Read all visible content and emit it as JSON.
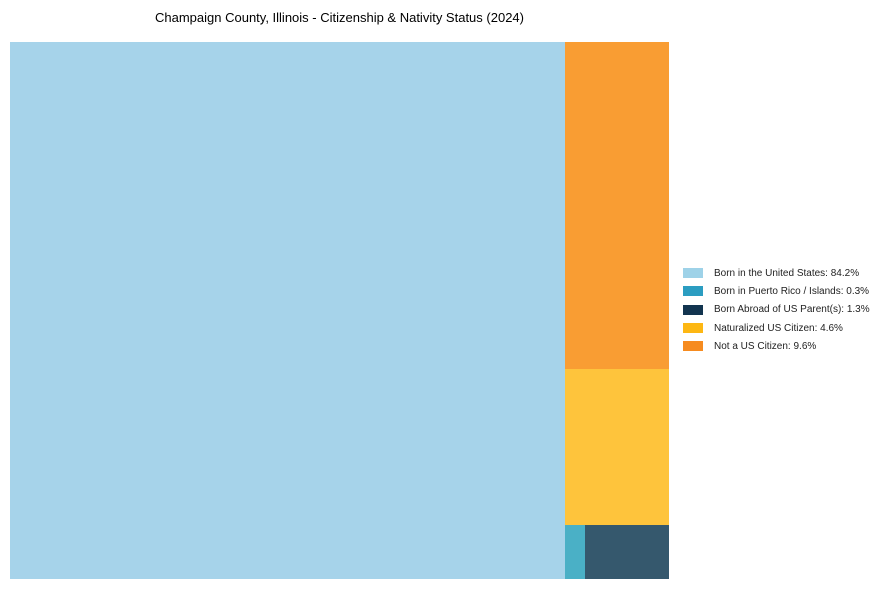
{
  "title": "Champaign County, Illinois - Citizenship & Nativity Status (2024)",
  "chart_data": {
    "type": "treemap",
    "title": "Champaign County, Illinois - Citizenship & Nativity Status (2024)",
    "unit": "%",
    "total": 100,
    "legend_position": "right",
    "grid": false,
    "segments": [
      {
        "label": "Born in the United States",
        "value": 84.2,
        "legend_text": "Born in the United States: 84.2%",
        "color": "#9ED2E8",
        "tile_color": "#A6D3EA"
      },
      {
        "label": "Born in Puerto Rico / Islands",
        "value": 0.3,
        "legend_text": "Born in Puerto Rico / Islands: 0.3%",
        "color": "#2B9DC1",
        "tile_color": "#4AB0C6"
      },
      {
        "label": "Born Abroad of US Parent(s)",
        "value": 1.3,
        "legend_text": "Born Abroad of US Parent(s): 1.3%",
        "color": "#12344F",
        "tile_color": "#35586D"
      },
      {
        "label": "Naturalized US Citizen",
        "value": 4.6,
        "legend_text": "Naturalized US Citizen: 4.6%",
        "color": "#FDB713",
        "tile_color": "#FEC43C"
      },
      {
        "label": "Not a US Citizen",
        "value": 9.6,
        "legend_text": "Not a US Citizen: 9.6%",
        "color": "#F68B1F",
        "tile_color": "#F99D33"
      }
    ]
  }
}
